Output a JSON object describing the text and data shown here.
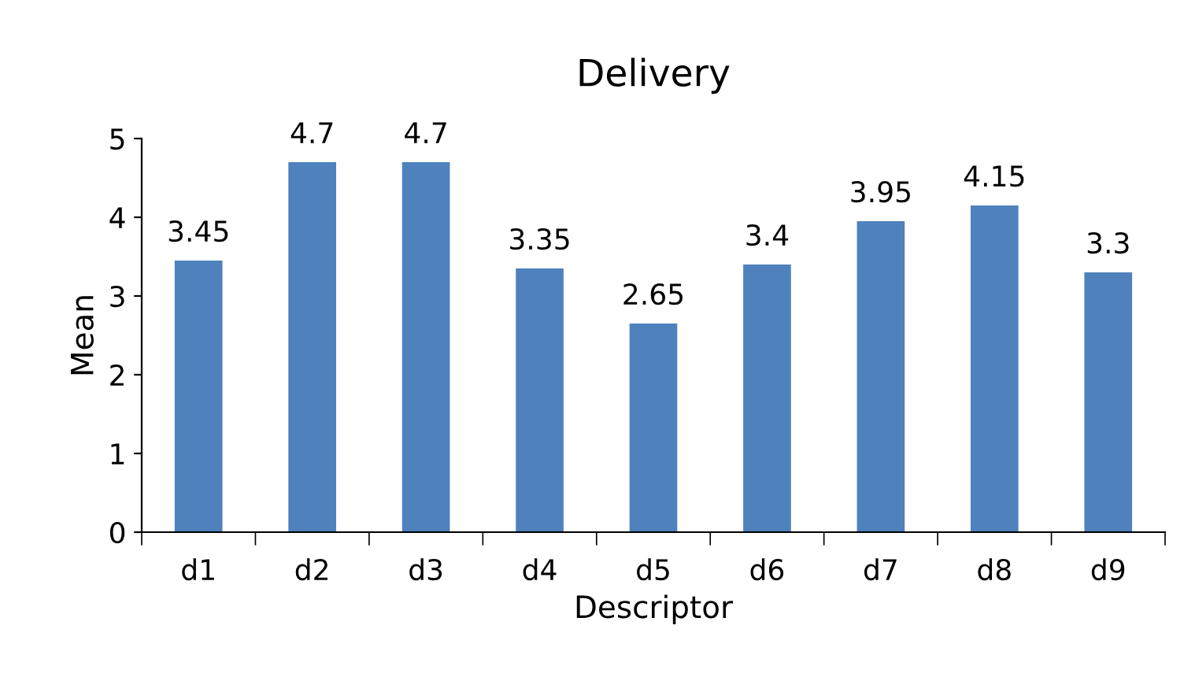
{
  "chart_data": {
    "type": "bar",
    "title": "Delivery",
    "xlabel": "Descriptor",
    "ylabel": "Mean",
    "categories": [
      "d1",
      "d2",
      "d3",
      "d4",
      "d5",
      "d6",
      "d7",
      "d8",
      "d9"
    ],
    "values": [
      3.45,
      4.7,
      4.7,
      3.35,
      2.65,
      3.4,
      3.95,
      4.15,
      3.3
    ],
    "color": "#4f81bd",
    "ylim": [
      0,
      5
    ],
    "yticks": [
      0,
      1,
      2,
      3,
      4,
      5
    ],
    "grid": false,
    "data_labels": true,
    "legend": false
  }
}
